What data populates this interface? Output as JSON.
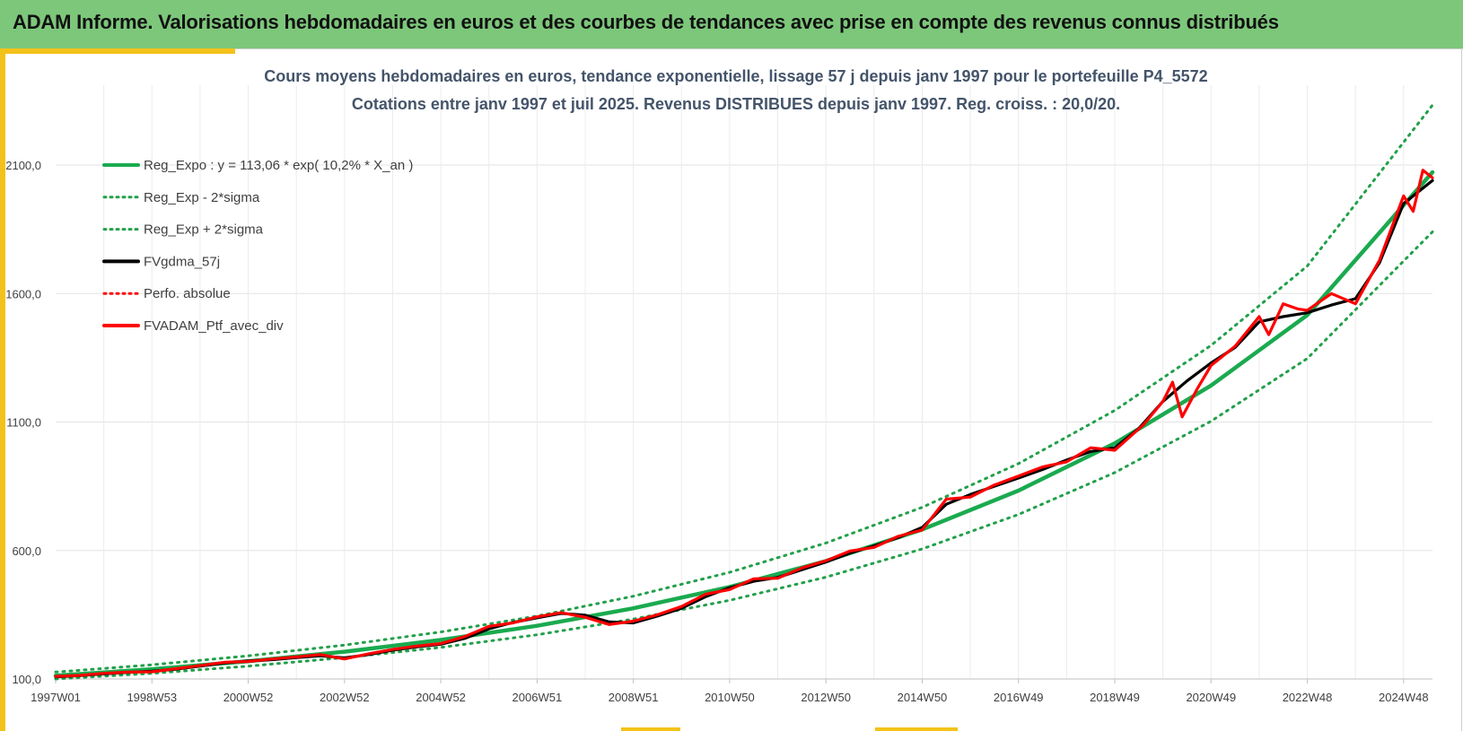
{
  "header": {
    "title": "ADAM Informe. Valorisations hebdomadaires en euros et des courbes de tendances avec prise en compte des revenus connus distribués"
  },
  "colors": {
    "header_bg": "#7dc77b",
    "accent_yellow": "#f3c21a",
    "reg_green": "#1aaa4f",
    "sigma_green": "#22a04a",
    "smooth_black": "#000000",
    "portfolio_red": "#ff0000"
  },
  "chart_data": {
    "type": "line",
    "title_lines": [
      "Cours moyens hebdomadaires  en euros, tendance exponentielle, lissage 57 j depuis janv 1997 pour le portefeuille P4_5572",
      "Cotations  entre janv 1997 et juil 2025. Revenus DISTRIBUES depuis janv 1997. Reg. croiss. : 20,0/20."
    ],
    "xlabel": "",
    "ylabel": "",
    "x_range_years": [
      1997.0,
      2025.6
    ],
    "ylim": [
      100,
      2300
    ],
    "y_ticks": [
      {
        "value": 100,
        "label": "100,0"
      },
      {
        "value": 600,
        "label": "600,0"
      },
      {
        "value": 1100,
        "label": "1100,0"
      },
      {
        "value": 1600,
        "label": "1600,0"
      },
      {
        "value": 2100,
        "label": "2100,0"
      }
    ],
    "x_ticks": [
      {
        "year": 1997.0,
        "label": "1997W01"
      },
      {
        "year": 1999.0,
        "label": "1998W53"
      },
      {
        "year": 2001.0,
        "label": "2000W52"
      },
      {
        "year": 2003.0,
        "label": "2002W52"
      },
      {
        "year": 2005.0,
        "label": "2004W52"
      },
      {
        "year": 2007.0,
        "label": "2006W51"
      },
      {
        "year": 2009.0,
        "label": "2008W51"
      },
      {
        "year": 2011.0,
        "label": "2010W50"
      },
      {
        "year": 2013.0,
        "label": "2012W50"
      },
      {
        "year": 2015.0,
        "label": "2014W50"
      },
      {
        "year": 2017.0,
        "label": "2016W49"
      },
      {
        "year": 2019.0,
        "label": "2018W49"
      },
      {
        "year": 2021.0,
        "label": "2020W49"
      },
      {
        "year": 2023.0,
        "label": "2022W48"
      },
      {
        "year": 2025.0,
        "label": "2024W48"
      }
    ],
    "grid": true,
    "legend_position": "top-left",
    "series": [
      {
        "name": "Reg_Expo : y = 113,06 * exp( 10,2% *  X_an )",
        "color": "#1aaa4f",
        "style": "solid",
        "x": [
          1997.0,
          1999.0,
          2001.0,
          2003.0,
          2005.0,
          2007.0,
          2009.0,
          2011.0,
          2013.0,
          2015.0,
          2017.0,
          2019.0,
          2021.0,
          2023.0,
          2025.6
        ],
        "y": [
          113,
          138,
          169,
          206,
          252,
          307,
          375,
          458,
          559,
          682,
          833,
          1017,
          1242,
          1516,
          2072
        ]
      },
      {
        "name": "Reg_Exp - 2*sigma",
        "color": "#22a04a",
        "style": "dotted",
        "x": [
          1997.0,
          1999.0,
          2001.0,
          2003.0,
          2005.0,
          2007.0,
          2009.0,
          2011.0,
          2013.0,
          2015.0,
          2017.0,
          2019.0,
          2021.0,
          2023.0,
          2025.6
        ],
        "y": [
          100,
          122,
          150,
          183,
          223,
          272,
          333,
          406,
          496,
          606,
          740,
          903,
          1103,
          1347,
          1840
        ]
      },
      {
        "name": "Reg_Exp + 2*sigma",
        "color": "#22a04a",
        "style": "dotted",
        "x": [
          1997.0,
          1999.0,
          2001.0,
          2003.0,
          2005.0,
          2007.0,
          2009.0,
          2011.0,
          2013.0,
          2015.0,
          2017.0,
          2019.0,
          2021.0,
          2023.0,
          2025.6
        ],
        "y": [
          127,
          155,
          190,
          232,
          283,
          345,
          422,
          515,
          629,
          768,
          938,
          1145,
          1398,
          1707,
          2333
        ]
      },
      {
        "name": "FVgdma_57j",
        "color": "#000000",
        "style": "solid",
        "x": [
          1997.0,
          1997.5,
          1998.0,
          1998.5,
          1999.0,
          1999.5,
          2000.0,
          2000.5,
          2001.0,
          2001.5,
          2002.0,
          2002.5,
          2003.0,
          2003.5,
          2004.0,
          2004.5,
          2005.0,
          2005.5,
          2006.0,
          2006.5,
          2007.0,
          2007.5,
          2008.0,
          2008.5,
          2009.0,
          2009.5,
          2010.0,
          2010.5,
          2011.0,
          2011.5,
          2012.0,
          2012.5,
          2013.0,
          2013.5,
          2014.0,
          2014.5,
          2015.0,
          2015.5,
          2016.0,
          2016.5,
          2017.0,
          2017.5,
          2018.0,
          2018.5,
          2019.0,
          2019.5,
          2020.0,
          2020.5,
          2021.0,
          2021.5,
          2022.0,
          2022.5,
          2023.0,
          2023.5,
          2024.0,
          2024.5,
          2025.0,
          2025.6
        ],
        "y": [
          108,
          113,
          120,
          126,
          130,
          138,
          150,
          162,
          170,
          175,
          183,
          190,
          182,
          195,
          212,
          225,
          235,
          258,
          295,
          320,
          338,
          355,
          348,
          322,
          318,
          345,
          375,
          420,
          455,
          480,
          495,
          525,
          555,
          590,
          618,
          650,
          690,
          780,
          818,
          850,
          882,
          915,
          952,
          985,
          1000,
          1075,
          1180,
          1260,
          1330,
          1390,
          1490,
          1510,
          1525,
          1555,
          1580,
          1720,
          1950,
          2040
        ]
      },
      {
        "name": "Perfo. absolue",
        "color": "#ff0000",
        "style": "dotted",
        "x": [
          1997.0,
          1997.5,
          1998.0,
          1998.5,
          1999.0,
          1999.5,
          2000.0,
          2000.5,
          2001.0,
          2001.5,
          2002.0,
          2002.5,
          2003.0,
          2003.5,
          2004.0,
          2004.5,
          2005.0,
          2005.5,
          2006.0,
          2006.5,
          2007.0,
          2007.5,
          2008.0,
          2008.5,
          2009.0,
          2009.5,
          2010.0,
          2010.5,
          2011.0,
          2011.5,
          2012.0,
          2012.5,
          2013.0,
          2013.5,
          2014.0,
          2014.5,
          2015.0,
          2015.5,
          2016.0,
          2016.5,
          2017.0,
          2017.5,
          2018.0,
          2018.5,
          2019.0,
          2019.5,
          2020.0,
          2020.5,
          2021.0,
          2021.5,
          2022.0,
          2022.5,
          2023.0,
          2023.5,
          2024.0,
          2024.5,
          2025.0,
          2025.6
        ],
        "y": [
          108,
          113,
          120,
          126,
          130,
          138,
          150,
          162,
          170,
          175,
          183,
          190,
          182,
          195,
          212,
          225,
          235,
          258,
          295,
          320,
          338,
          355,
          348,
          322,
          318,
          345,
          375,
          420,
          455,
          480,
          495,
          525,
          555,
          590,
          618,
          650,
          690,
          780,
          818,
          850,
          882,
          915,
          952,
          985,
          1000,
          1075,
          1180,
          1260,
          1330,
          1390,
          1490,
          1510,
          1525,
          1555,
          1580,
          1720,
          1950,
          2040
        ]
      },
      {
        "name": "FVADAM_Ptf_avec_div",
        "color": "#ff0000",
        "style": "solid",
        "x": [
          1997.0,
          1997.5,
          1998.0,
          1998.5,
          1999.0,
          1999.5,
          2000.0,
          2000.5,
          2001.0,
          2001.5,
          2002.0,
          2002.5,
          2003.0,
          2003.5,
          2004.0,
          2004.5,
          2005.0,
          2005.5,
          2006.0,
          2006.5,
          2007.0,
          2007.5,
          2008.0,
          2008.5,
          2009.0,
          2009.5,
          2010.0,
          2010.5,
          2011.0,
          2011.5,
          2012.0,
          2012.5,
          2013.0,
          2013.5,
          2014.0,
          2014.5,
          2015.0,
          2015.5,
          2016.0,
          2016.5,
          2017.0,
          2017.5,
          2018.0,
          2018.5,
          2019.0,
          2019.3,
          2019.6,
          2020.0,
          2020.2,
          2020.4,
          2020.7,
          2021.0,
          2021.5,
          2022.0,
          2022.2,
          2022.5,
          2022.8,
          2023.0,
          2023.5,
          2024.0,
          2024.5,
          2025.0,
          2025.2,
          2025.4,
          2025.6
        ],
        "y": [
          110,
          114,
          122,
          127,
          128,
          140,
          152,
          165,
          168,
          178,
          186,
          195,
          178,
          198,
          215,
          228,
          238,
          265,
          305,
          318,
          342,
          358,
          340,
          312,
          325,
          350,
          382,
          430,
          448,
          490,
          492,
          532,
          560,
          598,
          612,
          655,
          680,
          800,
          808,
          855,
          890,
          925,
          945,
          1000,
          990,
          1040,
          1090,
          1180,
          1255,
          1120,
          1225,
          1320,
          1395,
          1510,
          1440,
          1560,
          1540,
          1535,
          1600,
          1560,
          1730,
          1980,
          1920,
          2080,
          2050
        ]
      }
    ]
  }
}
